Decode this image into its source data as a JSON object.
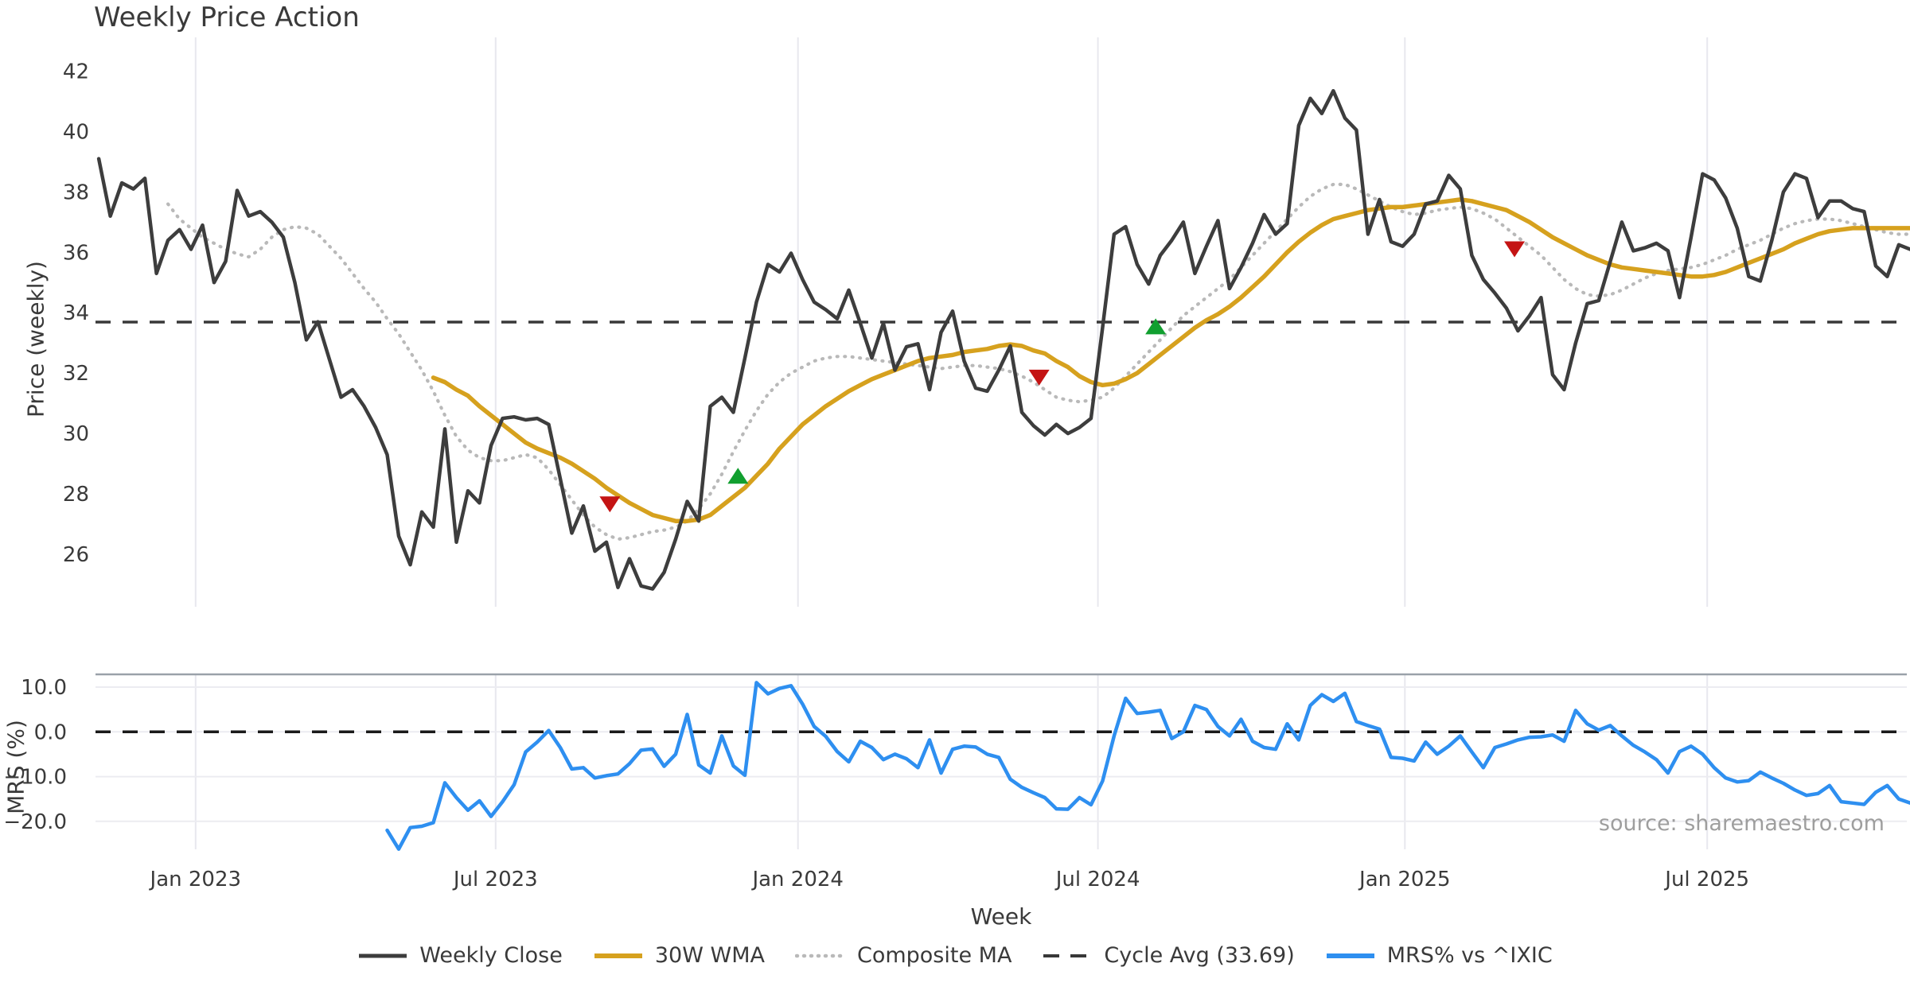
{
  "header": {
    "title": "Weekly Price Action"
  },
  "axes": {
    "price_ylabel": "Price (weekly)",
    "mrs_ylabel": "MRS (%)",
    "xlabel": "Week"
  },
  "source_credit": "source: sharemaestro.com",
  "colors": {
    "close": "#3d3d3d",
    "wma": "#d6a11e",
    "composite": "#b9b9b9",
    "dashed": "#383838",
    "mrs": "#2e8ff0",
    "grid": "#e8e8ee",
    "mrs_grid": "#ececf1",
    "mrs_spine": "#9aa1a9",
    "sell": "#c41414",
    "buy": "#119f2f",
    "tick_text": "#3a3a3a"
  },
  "legend": {
    "items": [
      {
        "label": "Weekly Close",
        "color": "#3d3d3d",
        "style": "solid",
        "lw": 5
      },
      {
        "label": "30W WMA",
        "color": "#d6a11e",
        "style": "solid",
        "lw": 6
      },
      {
        "label": "Composite MA",
        "color": "#b9b9b9",
        "style": "dotted",
        "lw": 4.5
      },
      {
        "label": "Cycle Avg (33.69)",
        "color": "#383838",
        "style": "dashed",
        "lw": 4
      },
      {
        "label": "MRS% vs ^IXIC",
        "color": "#2e8ff0",
        "style": "solid",
        "lw": 6
      }
    ]
  },
  "chart_data": [
    {
      "type": "line",
      "panel": "price",
      "title": "Weekly Price Action",
      "ylabel": "Price (weekly)",
      "ylim": [
        24.26,
        43.12
      ],
      "yticks": [
        26,
        28,
        30,
        32,
        34,
        36,
        38,
        40,
        42
      ],
      "xlim_weeks": [
        -0.28,
        156.7
      ],
      "xticks": [
        {
          "week": 8.4,
          "label": "Jan 2023"
        },
        {
          "week": 34.4,
          "label": "Jul 2023"
        },
        {
          "week": 60.6,
          "label": "Jan 2024"
        },
        {
          "week": 86.6,
          "label": "Jul 2024"
        },
        {
          "week": 113.2,
          "label": "Jan 2025"
        },
        {
          "week": 139.4,
          "label": "Jul 2025"
        }
      ],
      "reference_line": {
        "value": 33.69,
        "label": "Cycle Avg (33.69)"
      },
      "grid": "vertical",
      "legend_position": "bottom-center",
      "series": [
        {
          "name": "Weekly Close",
          "color": "#3d3d3d",
          "style": "solid",
          "width": 4.5,
          "start_week": 0,
          "values": [
            39.1,
            37.2,
            38.3,
            38.1,
            38.45,
            35.3,
            36.4,
            36.75,
            36.1,
            36.9,
            35.0,
            35.7,
            38.05,
            37.2,
            37.35,
            37.0,
            36.5,
            35.0,
            33.1,
            33.7,
            32.45,
            31.2,
            31.45,
            30.9,
            30.2,
            29.3,
            26.6,
            25.65,
            27.4,
            26.9,
            30.15,
            26.4,
            28.1,
            27.7,
            29.6,
            30.5,
            30.55,
            30.45,
            30.5,
            30.3,
            28.5,
            26.7,
            27.6,
            26.1,
            26.4,
            24.9,
            25.85,
            24.95,
            24.85,
            25.4,
            26.5,
            27.75,
            27.1,
            30.9,
            31.2,
            30.7,
            32.5,
            34.35,
            35.6,
            35.35,
            35.97,
            35.1,
            34.35,
            34.1,
            33.8,
            34.75,
            33.65,
            32.5,
            33.65,
            32.1,
            32.87,
            32.97,
            31.45,
            33.35,
            34.05,
            32.4,
            31.5,
            31.4,
            32.1,
            32.9,
            30.7,
            30.26,
            29.95,
            30.3,
            30.0,
            30.2,
            30.5,
            33.5,
            36.6,
            36.85,
            35.6,
            34.95,
            35.9,
            36.4,
            37.0,
            35.3,
            36.2,
            37.05,
            34.8,
            35.5,
            36.3,
            37.25,
            36.6,
            36.95,
            40.2,
            41.1,
            40.6,
            41.35,
            40.45,
            40.05,
            36.6,
            37.75,
            36.35,
            36.2,
            36.6,
            37.6,
            37.7,
            38.55,
            38.1,
            35.9,
            35.1,
            34.65,
            34.15,
            33.4,
            33.9,
            34.5,
            31.95,
            31.45,
            33.0,
            34.3,
            34.4,
            35.7,
            37.0,
            36.05,
            36.15,
            36.3,
            36.05,
            34.5,
            36.5,
            38.6,
            38.4,
            37.8,
            36.8,
            35.2,
            35.05,
            36.4,
            38.0,
            38.6,
            38.45,
            37.15,
            37.7,
            37.7,
            37.45,
            37.35,
            35.55,
            35.2,
            36.25,
            36.1
          ]
        },
        {
          "name": "30W WMA",
          "color": "#d6a11e",
          "style": "solid",
          "width": 5.5,
          "start_week": 29,
          "values": [
            31.85,
            31.7,
            31.45,
            31.25,
            30.9,
            30.6,
            30.3,
            30.0,
            29.7,
            29.5,
            29.35,
            29.2,
            29.0,
            28.75,
            28.5,
            28.2,
            27.95,
            27.7,
            27.5,
            27.3,
            27.2,
            27.1,
            27.1,
            27.15,
            27.3,
            27.6,
            27.9,
            28.2,
            28.6,
            29.0,
            29.5,
            29.9,
            30.3,
            30.6,
            30.9,
            31.15,
            31.4,
            31.6,
            31.8,
            31.95,
            32.1,
            32.25,
            32.4,
            32.5,
            32.55,
            32.6,
            32.7,
            32.75,
            32.8,
            32.9,
            32.95,
            32.9,
            32.75,
            32.65,
            32.4,
            32.2,
            31.9,
            31.7,
            31.6,
            31.65,
            31.8,
            32.0,
            32.3,
            32.6,
            32.9,
            33.2,
            33.5,
            33.75,
            33.95,
            34.2,
            34.5,
            34.85,
            35.2,
            35.6,
            36.0,
            36.35,
            36.65,
            36.9,
            37.1,
            37.2,
            37.3,
            37.4,
            37.45,
            37.5,
            37.5,
            37.55,
            37.6,
            37.65,
            37.7,
            37.75,
            37.7,
            37.6,
            37.5,
            37.4,
            37.2,
            37.0,
            36.75,
            36.5,
            36.3,
            36.1,
            35.9,
            35.75,
            35.6,
            35.5,
            35.45,
            35.4,
            35.35,
            35.3,
            35.25,
            35.2,
            35.2,
            35.25,
            35.35,
            35.5,
            35.65,
            35.8,
            35.95,
            36.1,
            36.3,
            36.45,
            36.6,
            36.7,
            36.75,
            36.8,
            36.8,
            36.8,
            36.8,
            36.8,
            36.8
          ]
        },
        {
          "name": "Composite MA",
          "color": "#b9b9b9",
          "style": "dotted",
          "width": 4.2,
          "start_week": 6,
          "values": [
            37.6,
            37.1,
            36.8,
            36.5,
            36.3,
            36.1,
            35.95,
            35.85,
            36.1,
            36.5,
            36.75,
            36.85,
            36.8,
            36.6,
            36.2,
            35.8,
            35.3,
            34.8,
            34.35,
            33.8,
            33.3,
            32.7,
            32.1,
            31.4,
            30.6,
            29.9,
            29.45,
            29.2,
            29.1,
            29.1,
            29.2,
            29.3,
            29.2,
            28.8,
            28.3,
            27.8,
            27.3,
            26.9,
            26.65,
            26.5,
            26.55,
            26.65,
            26.75,
            26.8,
            26.9,
            27.1,
            27.5,
            28.0,
            28.65,
            29.4,
            30.1,
            30.75,
            31.3,
            31.7,
            32.0,
            32.2,
            32.4,
            32.5,
            32.55,
            32.55,
            32.5,
            32.45,
            32.4,
            32.35,
            32.3,
            32.25,
            32.2,
            32.15,
            32.2,
            32.25,
            32.25,
            32.2,
            32.15,
            32.05,
            31.9,
            31.7,
            31.45,
            31.2,
            31.1,
            31.05,
            31.1,
            31.2,
            31.5,
            31.9,
            32.3,
            32.7,
            33.1,
            33.5,
            33.9,
            34.2,
            34.5,
            34.8,
            35.1,
            35.5,
            35.9,
            36.3,
            36.7,
            37.1,
            37.5,
            37.85,
            38.1,
            38.25,
            38.25,
            38.1,
            37.9,
            37.7,
            37.5,
            37.35,
            37.25,
            37.3,
            37.4,
            37.45,
            37.5,
            37.45,
            37.3,
            37.1,
            36.8,
            36.5,
            36.2,
            35.9,
            35.5,
            35.1,
            34.8,
            34.6,
            34.55,
            34.6,
            34.75,
            34.95,
            35.15,
            35.3,
            35.4,
            35.45,
            35.5,
            35.6,
            35.75,
            35.9,
            36.1,
            36.25,
            36.4,
            36.6,
            36.8,
            36.95,
            37.05,
            37.1,
            37.1,
            37.05,
            36.95,
            36.85,
            36.75,
            36.65,
            36.6,
            36.6
          ]
        }
      ],
      "markers": [
        {
          "week": 44.3,
          "value": 27.65,
          "dir": "down",
          "color": "#c41414"
        },
        {
          "week": 55.4,
          "value": 28.6,
          "dir": "up",
          "color": "#119f2f"
        },
        {
          "week": 81.5,
          "value": 31.85,
          "dir": "down",
          "color": "#c41414"
        },
        {
          "week": 91.6,
          "value": 33.55,
          "dir": "up",
          "color": "#119f2f"
        },
        {
          "week": 122.7,
          "value": 36.1,
          "dir": "down",
          "color": "#c41414"
        }
      ]
    },
    {
      "type": "line",
      "panel": "mrs",
      "ylabel": "MRS (%)",
      "xlabel": "Week",
      "ylim": [
        -26.25,
        12.85
      ],
      "yticks": [
        {
          "v": 10,
          "label": "10.0"
        },
        {
          "v": 0,
          "label": "0.0"
        },
        {
          "v": -10,
          "label": "−10.0"
        },
        {
          "v": -20,
          "label": "−20.0"
        }
      ],
      "zero_line_dashed": true,
      "grid": "horizontal",
      "series": [
        {
          "name": "MRS% vs ^IXIC",
          "color": "#2e8ff0",
          "style": "solid",
          "width": 4.5,
          "start_week": 25,
          "values": [
            -22.0,
            -26.2,
            -21.4,
            -21.1,
            -20.3,
            -11.4,
            -14.7,
            -17.5,
            -15.4,
            -18.9,
            -15.6,
            -11.8,
            -4.5,
            -2.3,
            0.3,
            -3.5,
            -8.3,
            -8.0,
            -10.3,
            -9.8,
            -9.4,
            -7.1,
            -4.1,
            -3.8,
            -7.7,
            -5.0,
            3.9,
            -7.4,
            -9.2,
            -0.9,
            -7.6,
            -9.7,
            11.0,
            8.5,
            9.7,
            10.3,
            6.2,
            1.2,
            -1.0,
            -4.4,
            -6.7,
            -2.1,
            -3.5,
            -6.2,
            -5.0,
            -6.0,
            -8.0,
            -1.8,
            -9.2,
            -3.9,
            -3.2,
            -3.4,
            -5.0,
            -5.7,
            -10.6,
            -12.4,
            -13.6,
            -14.7,
            -17.2,
            -17.3,
            -14.7,
            -16.3,
            -11.0,
            -0.9,
            7.5,
            4.1,
            4.4,
            4.8,
            -1.5,
            0.0,
            5.9,
            5.0,
            1.2,
            -0.9,
            2.8,
            -2.1,
            -3.5,
            -3.9,
            1.8,
            -1.8,
            5.9,
            8.3,
            6.8,
            8.6,
            2.3,
            1.4,
            0.6,
            -5.7,
            -5.9,
            -6.5,
            -2.3,
            -5.0,
            -3.2,
            -0.9,
            -4.5,
            -8.0,
            -3.5,
            -2.7,
            -1.8,
            -1.2,
            -1.1,
            -0.7,
            -2.1,
            4.8,
            1.8,
            0.4,
            1.4,
            -0.9,
            -3.0,
            -4.5,
            -6.2,
            -9.2,
            -4.4,
            -3.2,
            -5.0,
            -8.0,
            -10.3,
            -11.2,
            -10.9,
            -9.0,
            -10.3,
            -11.5,
            -13.0,
            -14.2,
            -13.8,
            -12.0,
            -15.6,
            -15.9,
            -16.2,
            -13.5,
            -12.0,
            -15.0,
            -15.9
          ]
        }
      ],
      "source": "source: sharemaestro.com"
    }
  ]
}
